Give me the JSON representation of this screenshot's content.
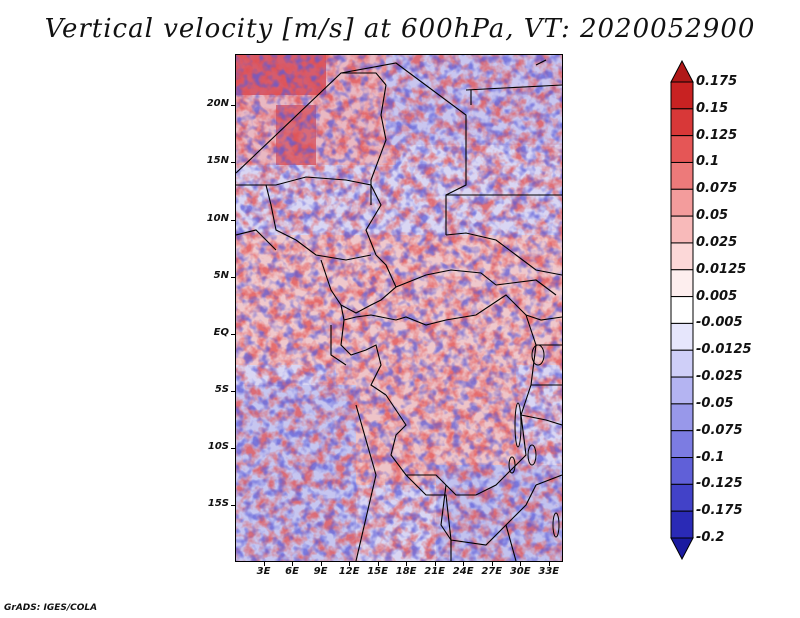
{
  "title": "Vertical velocity [m/s] at 600hPa, VT: 2020052900",
  "footer": "GrADS: IGES/COLA",
  "map": {
    "lat_labels": [
      "20N",
      "15N",
      "10N",
      "5N",
      "EQ",
      "5S",
      "10S",
      "15S"
    ],
    "lat_values": [
      20,
      15,
      10,
      5,
      0,
      -5,
      -10,
      -15
    ],
    "lon_labels": [
      "3E",
      "6E",
      "9E",
      "12E",
      "15E",
      "18E",
      "21E",
      "24E",
      "27E",
      "30E",
      "33E"
    ],
    "lon_values": [
      3,
      6,
      9,
      12,
      15,
      18,
      21,
      24,
      27,
      30,
      33
    ],
    "lat_range": [
      -20,
      24.5
    ],
    "lon_range": [
      0,
      34.5
    ]
  },
  "colorbar": {
    "labels": [
      "0.175",
      "0.15",
      "0.125",
      "0.1",
      "0.075",
      "0.05",
      "0.025",
      "0.0125",
      "0.005",
      "-0.005",
      "-0.0125",
      "-0.025",
      "-0.05",
      "-0.075",
      "-0.1",
      "-0.125",
      "-0.175",
      "-0.2"
    ],
    "colors": [
      "#b01818",
      "#c82222",
      "#d83838",
      "#e55656",
      "#ed7a7a",
      "#f39c9c",
      "#f8baba",
      "#fcd8d8",
      "#fdeeee",
      "#ffffff",
      "#e6e6fc",
      "#cfcff8",
      "#b4b4f2",
      "#9898ea",
      "#7c7ce2",
      "#6060d8",
      "#4242c8",
      "#2a2ab6",
      "#1a1aa0"
    ]
  }
}
